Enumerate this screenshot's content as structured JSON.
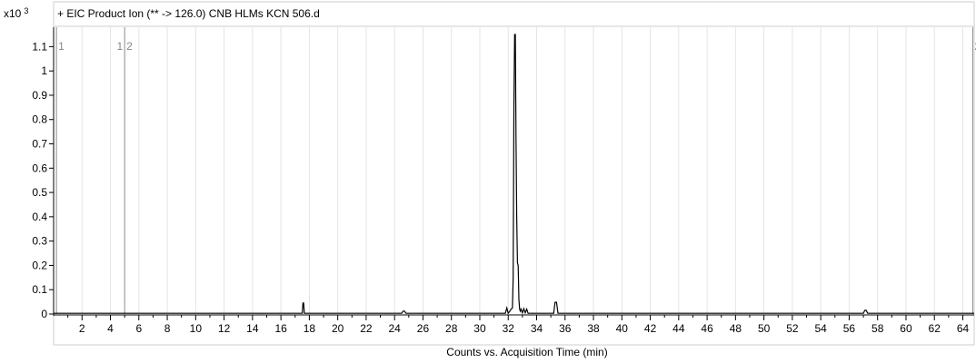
{
  "chart_data": {
    "type": "line",
    "title": "+ EIC Product Ion (** -> 126.0) CNB HLMs  KCN 506.d",
    "y_multiplier_label": "x10",
    "y_multiplier_exp": "3",
    "xlabel": "Counts vs. Acquisition Time (min)",
    "ylabel": "",
    "xlim": [
      0,
      64.8
    ],
    "ylim": [
      0,
      1.15
    ],
    "x_ticks": [
      2,
      4,
      6,
      8,
      10,
      12,
      14,
      16,
      18,
      20,
      22,
      24,
      26,
      28,
      30,
      32,
      34,
      36,
      38,
      40,
      42,
      44,
      46,
      48,
      50,
      52,
      54,
      56,
      58,
      60,
      62,
      64
    ],
    "y_ticks": [
      0,
      0.1,
      0.2,
      0.3,
      0.4,
      0.5,
      0.6,
      0.7,
      0.8,
      0.9,
      1,
      1.1
    ],
    "y_tick_labels": [
      "0",
      "0.1",
      "0.2",
      "0.3",
      "0.4",
      "0.5",
      "0.6",
      "0.7",
      "0.8",
      "0.9",
      "1",
      "1.1"
    ],
    "grid": true,
    "segment_markers": [
      {
        "x": 0.2,
        "label": "1"
      },
      {
        "x": 5.0,
        "label": "1"
      },
      {
        "x": 5.0,
        "label": "2"
      },
      {
        "x": 64.7,
        "label": "2"
      }
    ],
    "series": [
      {
        "color": "#000000",
        "x": [
          0,
          17.5,
          17.55,
          17.6,
          17.65,
          17.7,
          24.5,
          24.6,
          24.7,
          24.8,
          31.8,
          31.9,
          32.0,
          32.1,
          32.2,
          32.3,
          32.35,
          32.4,
          32.45,
          32.5,
          32.55,
          32.6,
          32.65,
          32.7,
          32.75,
          32.8,
          32.85,
          32.9,
          33.0,
          33.1,
          33.2,
          33.3,
          33.4,
          35.2,
          35.3,
          35.4,
          35.5,
          57.0,
          57.1,
          57.2,
          57.3,
          64.8
        ],
        "values": [
          0.003,
          0.003,
          0.045,
          0.045,
          0.003,
          0.003,
          0.003,
          0.012,
          0.012,
          0.003,
          0.003,
          0.025,
          0.003,
          0.01,
          0.02,
          0.025,
          0.15,
          0.85,
          1.15,
          1.15,
          0.73,
          0.4,
          0.21,
          0.2,
          0.06,
          0.02,
          0.012,
          0.02,
          0.005,
          0.022,
          0.005,
          0.02,
          0.003,
          0.003,
          0.048,
          0.048,
          0.003,
          0.003,
          0.015,
          0.015,
          0.003,
          0.003
        ]
      }
    ]
  }
}
